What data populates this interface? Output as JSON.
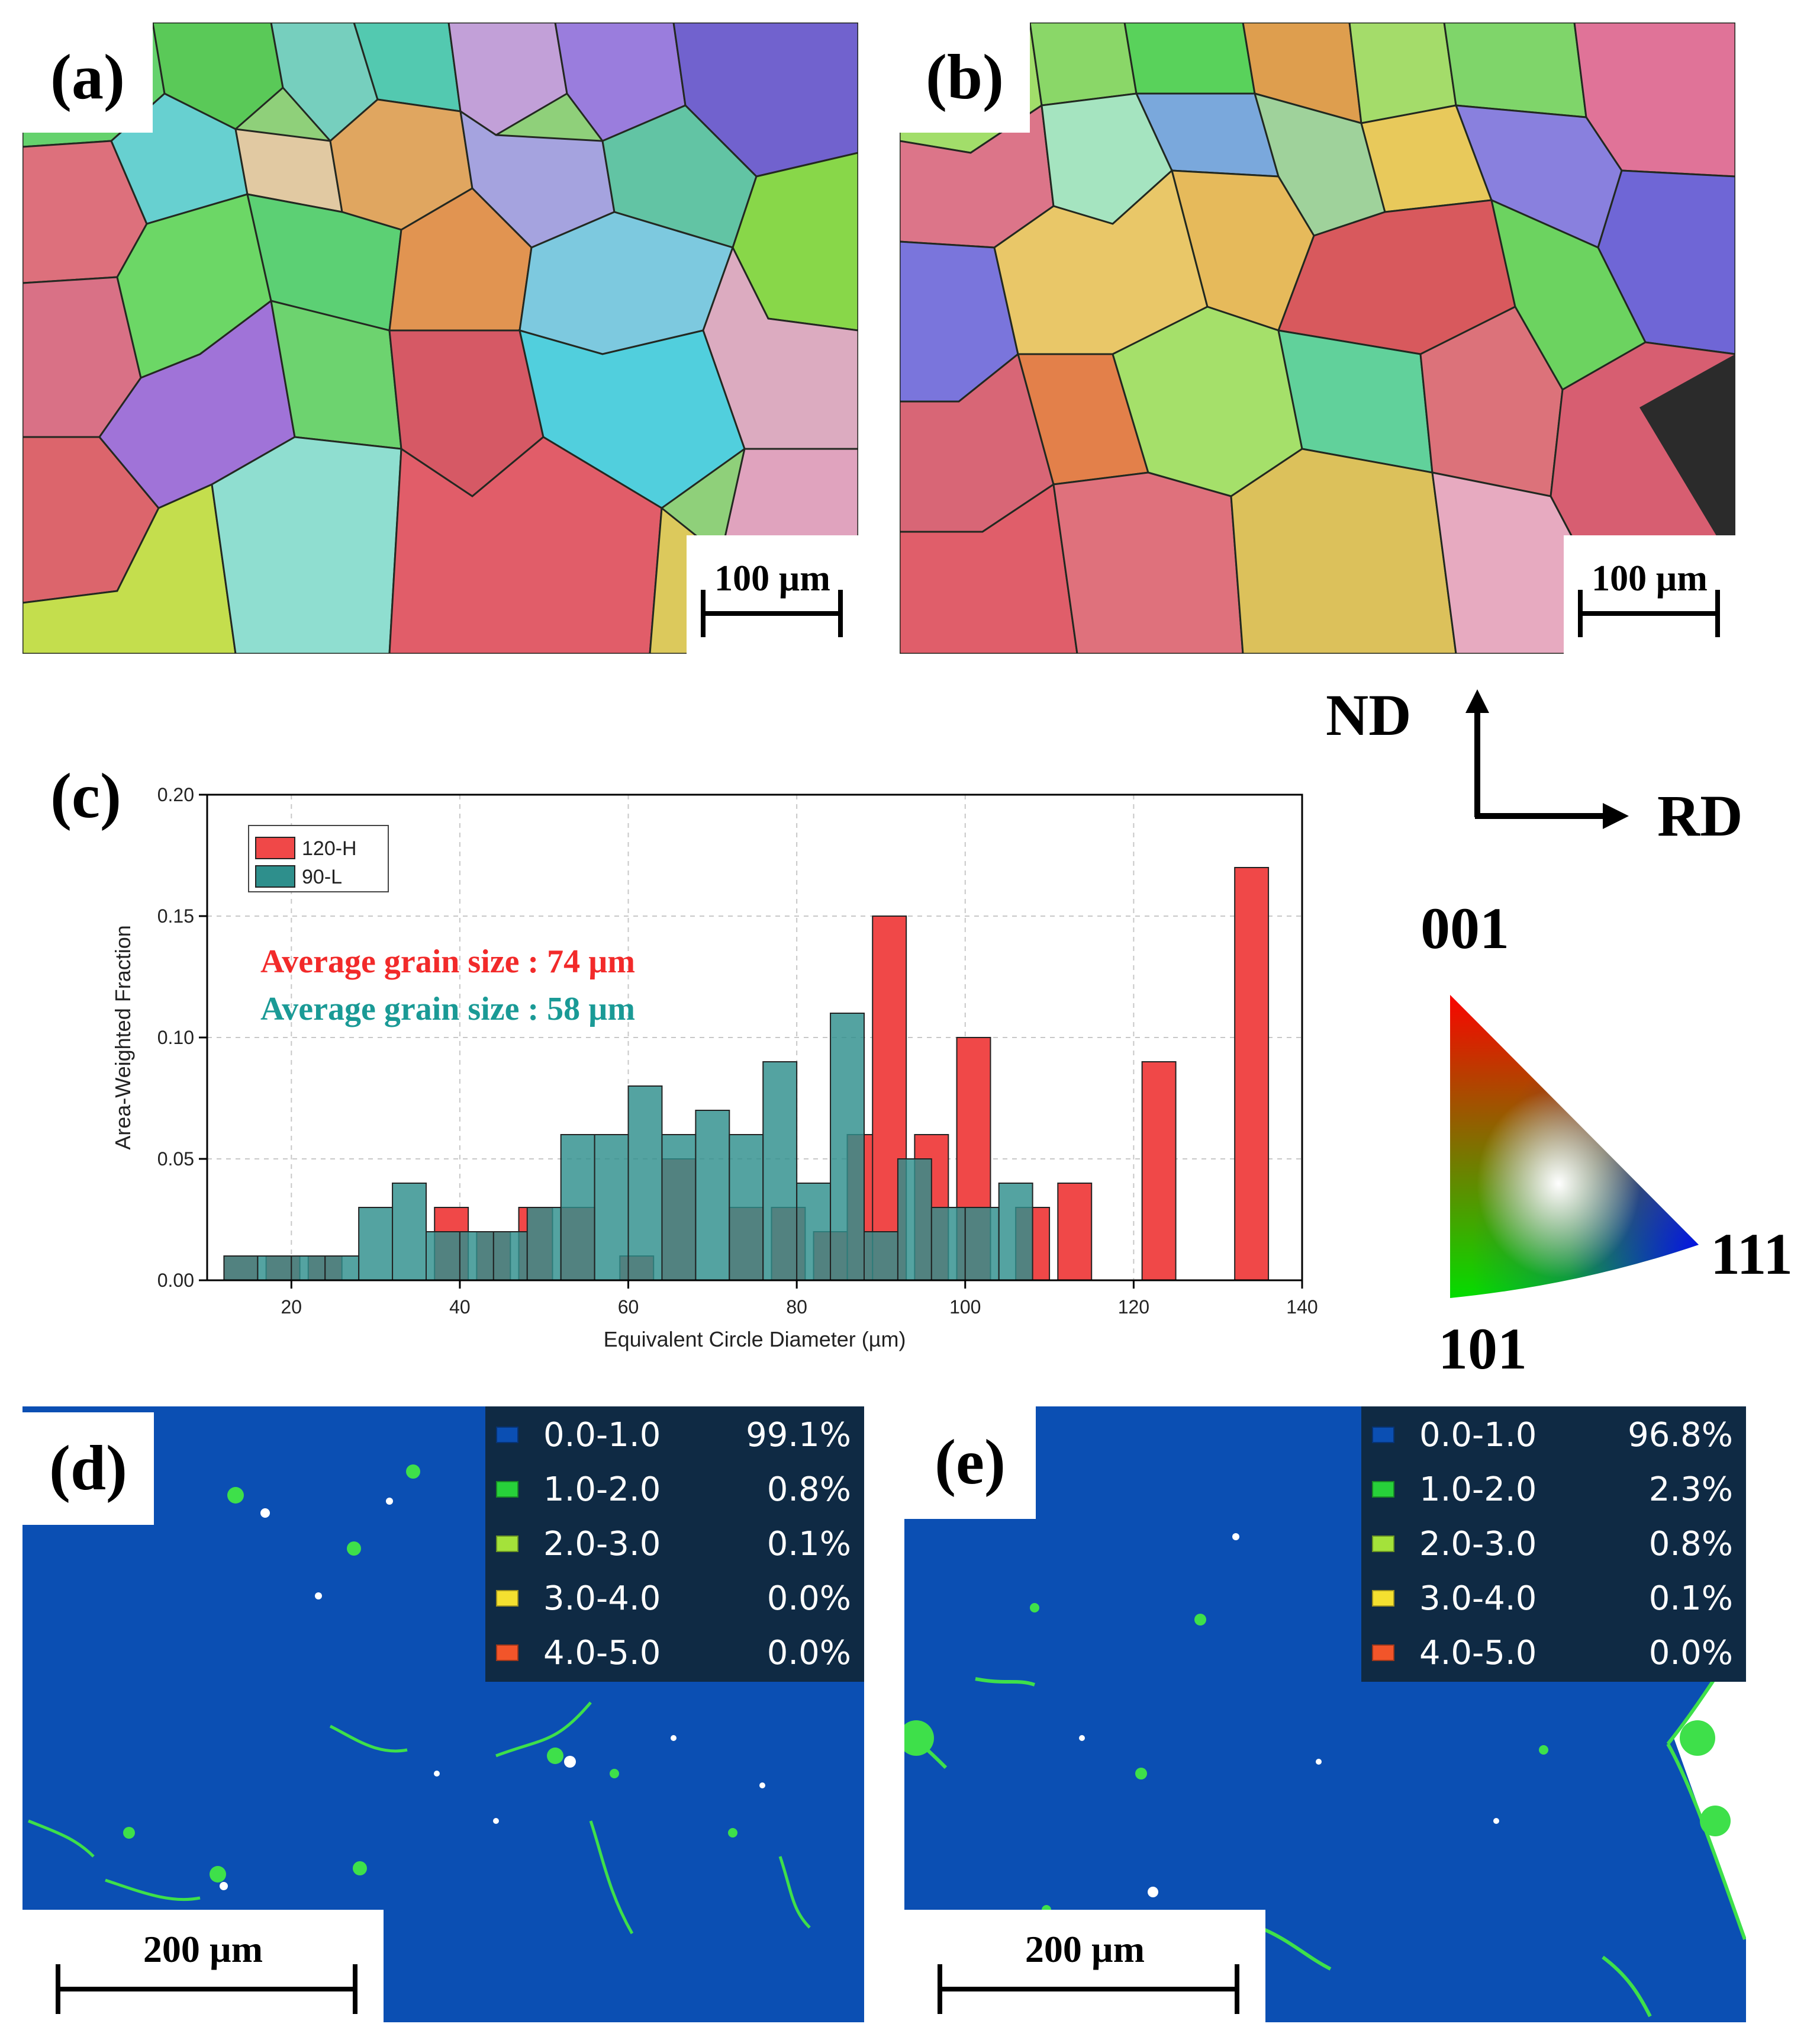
{
  "panels": {
    "a": {
      "label": "(a)",
      "scale": "100 µm"
    },
    "b": {
      "label": "(b)",
      "scale": "100 µm"
    },
    "c": {
      "label": "(c)"
    },
    "d": {
      "label": "(d)",
      "scale": "200 µm",
      "legend": [
        {
          "range": "0.0-1.0",
          "pct": "99.1%",
          "color": "#0b4fb3"
        },
        {
          "range": "1.0-2.0",
          "pct": "0.8%",
          "color": "#27d13a"
        },
        {
          "range": "2.0-3.0",
          "pct": "0.1%",
          "color": "#a4e23a"
        },
        {
          "range": "3.0-4.0",
          "pct": "0.0%",
          "color": "#f4e030"
        },
        {
          "range": "4.0-5.0",
          "pct": "0.0%",
          "color": "#f2552a"
        }
      ]
    },
    "e": {
      "label": "(e)",
      "scale": "200 µm",
      "legend": [
        {
          "range": "0.0-1.0",
          "pct": "96.8%",
          "color": "#0b4fb3"
        },
        {
          "range": "1.0-2.0",
          "pct": "2.3%",
          "color": "#27d13a"
        },
        {
          "range": "2.0-3.0",
          "pct": "0.8%",
          "color": "#a4e23a"
        },
        {
          "range": "3.0-4.0",
          "pct": "0.1%",
          "color": "#f4e030"
        },
        {
          "range": "4.0-5.0",
          "pct": "0.0%",
          "color": "#f2552a"
        }
      ]
    }
  },
  "axes_indicator": {
    "vertical": "ND",
    "horizontal": "RD"
  },
  "ipf_triangle": {
    "top": "001",
    "right": "111",
    "bottom": "101"
  },
  "colors": {
    "map_blue": "#0b4fb3",
    "h120": "#f04848",
    "l90": "#2e8f8c"
  },
  "chart_data": {
    "type": "bar",
    "title": "",
    "xlabel": "Equivalent Circle Diameter (µm)",
    "ylabel": "Area-Weighted Fraction",
    "xlim": [
      10,
      140
    ],
    "ylim": [
      0,
      0.2
    ],
    "xticks": [
      20,
      40,
      60,
      80,
      100,
      120,
      140
    ],
    "yticks": [
      "0.00",
      "0.05",
      "0.10",
      "0.15",
      "0.20"
    ],
    "annotations": [
      {
        "text": "Average grain size : 74 µm",
        "color": "#f22a2a"
      },
      {
        "text": "Average grain size : 58 µm",
        "color": "#1a9a96"
      }
    ],
    "series": [
      {
        "name": "120-H",
        "color": "#f04848",
        "x": [
          14,
          19,
          24,
          39,
          44,
          49,
          54,
          61,
          66,
          74,
          79,
          84,
          88,
          91,
          96,
          101,
          108,
          113,
          123,
          134
        ],
        "values": [
          0.01,
          0.01,
          0.01,
          0.03,
          0.02,
          0.03,
          0.03,
          0.01,
          0.05,
          0.03,
          0.03,
          0.02,
          0.06,
          0.15,
          0.06,
          0.1,
          0.03,
          0.04,
          0.09,
          0.17
        ]
      },
      {
        "name": "90-L",
        "color": "#2e8f8c",
        "x": [
          14,
          18,
          22,
          26,
          30,
          34,
          38,
          42,
          46,
          50,
          54,
          58,
          62,
          66,
          70,
          74,
          78,
          82,
          86,
          90,
          94,
          98,
          102,
          106
        ],
        "values": [
          0.01,
          0.01,
          0.01,
          0.01,
          0.03,
          0.04,
          0.02,
          0.02,
          0.02,
          0.03,
          0.06,
          0.06,
          0.08,
          0.06,
          0.07,
          0.06,
          0.09,
          0.04,
          0.11,
          0.02,
          0.05,
          0.03,
          0.03,
          0.04
        ]
      }
    ]
  }
}
